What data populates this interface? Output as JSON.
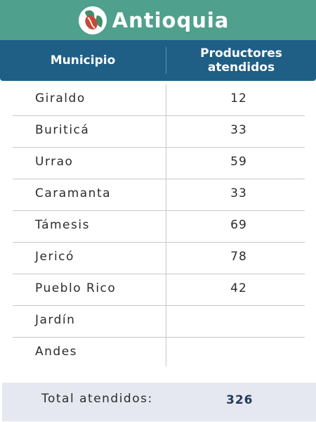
{
  "title": "Antioquia",
  "logo_icon": "coffee-leaves-icon",
  "colors": {
    "title_bar": "#4fa08d",
    "header": "#1f5f86",
    "total_bar": "#e6e8f1",
    "logo_bean": "#c44a3a",
    "logo_leaf": "#3f8f6a"
  },
  "header": {
    "col1": "Municipio",
    "col2_line1": "Productores",
    "col2_line2": "atendidos"
  },
  "rows": [
    {
      "municipio": "Giraldo",
      "productores": "12"
    },
    {
      "municipio": "Buriticá",
      "productores": "33"
    },
    {
      "municipio": "Urrao",
      "productores": "59"
    },
    {
      "municipio": "Caramanta",
      "productores": "33"
    },
    {
      "municipio": "Támesis",
      "productores": "69"
    },
    {
      "municipio": "Jericó",
      "productores": "78"
    },
    {
      "municipio": "Pueblo Rico",
      "productores": "42"
    },
    {
      "municipio": "Jardín",
      "productores": ""
    },
    {
      "municipio": "Andes",
      "productores": ""
    }
  ],
  "total": {
    "label": "Total atendidos:",
    "value": "326"
  }
}
